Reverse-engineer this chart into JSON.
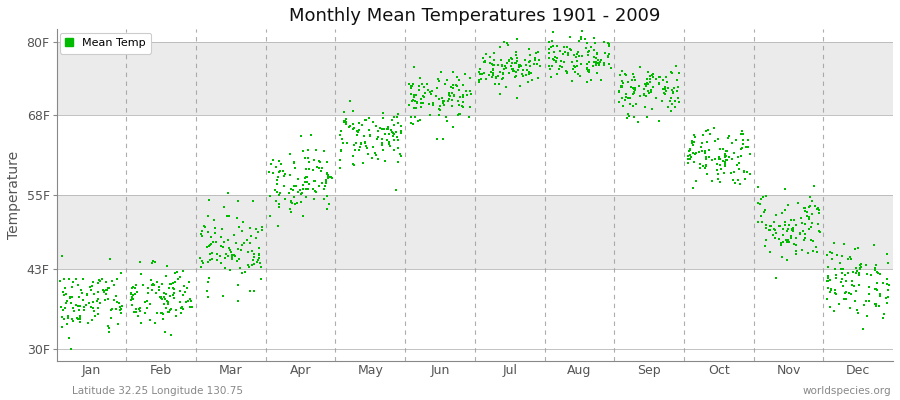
{
  "title": "Monthly Mean Temperatures 1901 - 2009",
  "ylabel": "Temperature",
  "subtitle_left": "Latitude 32.25 Longitude 130.75",
  "subtitle_right": "worldspecies.org",
  "legend_label": "Mean Temp",
  "dot_color": "#00BB00",
  "band_colors": [
    "#FFFFFF",
    "#EBEBEB"
  ],
  "outer_bg_color": "#FFFFFF",
  "ytick_labels": [
    "30F",
    "43F",
    "55F",
    "68F",
    "80F"
  ],
  "ytick_values": [
    30,
    43,
    55,
    68,
    80
  ],
  "ylim": [
    28,
    82
  ],
  "months": [
    "Jan",
    "Feb",
    "Mar",
    "Apr",
    "May",
    "Jun",
    "Jul",
    "Aug",
    "Sep",
    "Oct",
    "Nov",
    "Dec"
  ],
  "month_centers": [
    0.5,
    1.5,
    2.5,
    3.5,
    4.5,
    5.5,
    6.5,
    7.5,
    8.5,
    9.5,
    10.5,
    11.5
  ],
  "month_boundaries": [
    0,
    1,
    2,
    3,
    4,
    5,
    6,
    7,
    8,
    9,
    10,
    11,
    12
  ],
  "xlim": [
    0,
    12
  ],
  "num_years": 109,
  "monthly_mean_temps_F": [
    37.5,
    38.2,
    46.5,
    57.5,
    64.5,
    70.5,
    76.0,
    77.0,
    72.0,
    61.5,
    50.0,
    41.0
  ],
  "monthly_std_F": [
    2.8,
    2.8,
    3.2,
    2.8,
    2.5,
    2.2,
    1.8,
    1.8,
    2.2,
    2.5,
    3.0,
    3.0
  ]
}
